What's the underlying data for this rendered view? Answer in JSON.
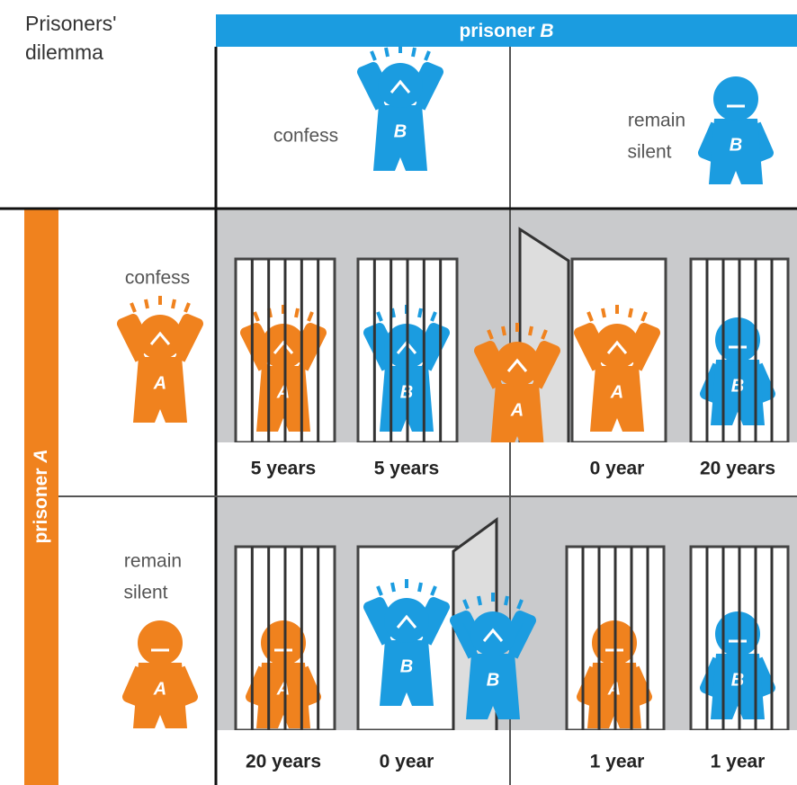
{
  "title_lines": [
    "Prisoners'",
    "dilemma"
  ],
  "player_b": {
    "label": "prisoner",
    "letter": "B"
  },
  "player_a": {
    "label": "prisoner",
    "letter": "A"
  },
  "strategies": [
    {
      "lines": [
        "confess"
      ]
    },
    {
      "lines": [
        "remain",
        "silent"
      ]
    }
  ],
  "outcomes": [
    [
      {
        "a": "5 years",
        "b": "5 years"
      },
      {
        "a": "0 year",
        "b": "20 years"
      }
    ],
    [
      {
        "a": "20 years",
        "b": "0 year"
      },
      {
        "a": "1 year",
        "b": "1 year"
      }
    ]
  ]
}
